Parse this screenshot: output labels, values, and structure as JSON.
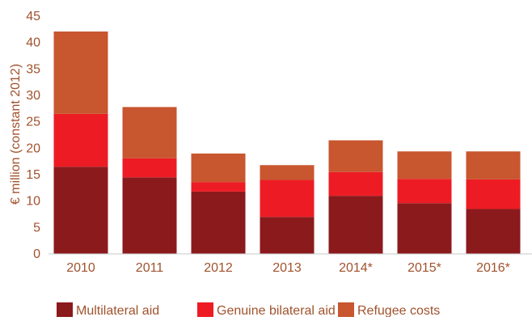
{
  "chart_data": {
    "type": "bar",
    "stacked": true,
    "categories": [
      "2010",
      "2011",
      "2012",
      "2013",
      "2014*",
      "2015*",
      "2016*"
    ],
    "series": [
      {
        "name": "Multilateral aid",
        "color": "#8b1a1d",
        "values": [
          16.5,
          14.5,
          11.8,
          7.0,
          11.0,
          9.6,
          8.5
        ]
      },
      {
        "name": "Genuine bilateral aid",
        "color": "#ed1c24",
        "values": [
          10.0,
          3.6,
          1.8,
          7.0,
          4.5,
          4.6,
          5.6
        ]
      },
      {
        "name": "Refugee costs",
        "color": "#c8562f",
        "values": [
          15.6,
          9.7,
          5.4,
          2.8,
          6.0,
          5.2,
          5.3
        ]
      }
    ],
    "ylabel": "€ million (constant 2012)",
    "xlabel": "",
    "title": "",
    "ylim": [
      0,
      45
    ],
    "yticks": [
      0,
      5,
      10,
      15,
      20,
      25,
      30,
      35,
      40,
      45
    ],
    "grid": false,
    "legend_position": "bottom"
  },
  "colors": {
    "axis_text": "#a0522d"
  }
}
